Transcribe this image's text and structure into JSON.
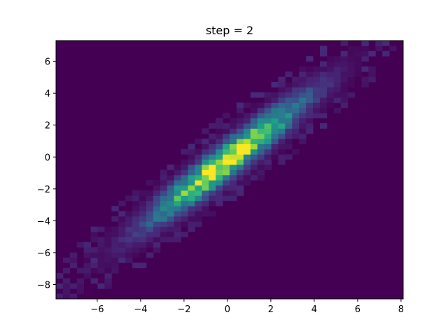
{
  "chart_data": {
    "type": "heatmap",
    "title": "step = 2",
    "xlabel": "",
    "ylabel": "",
    "xlim": [
      -7.9,
      8.1
    ],
    "ylim": [
      -8.9,
      7.3
    ],
    "x_ticks": [
      -6,
      -4,
      -2,
      0,
      2,
      4,
      6,
      8
    ],
    "y_ticks": [
      -8,
      -6,
      -4,
      -2,
      0,
      2,
      4,
      6
    ],
    "x_tick_labels": [
      "−6",
      "−4",
      "−2",
      "0",
      "2",
      "4",
      "6",
      "8"
    ],
    "y_tick_labels": [
      "−8",
      "−6",
      "−4",
      "−2",
      "0",
      "2",
      "4",
      "6"
    ],
    "grid": false,
    "colormap": "viridis",
    "bins": [
      50,
      50
    ],
    "distribution": {
      "shape": "2d histogram of correlated normal samples",
      "center": [
        0.0,
        -0.2
      ],
      "std_x": 2.3,
      "std_y": 2.5,
      "correlation": 0.95,
      "peak_density_location": [
        -1.5,
        -1.0
      ]
    }
  },
  "colors": {
    "background": "#ffffff",
    "plot_background": "#440154",
    "axes": "#000000"
  }
}
